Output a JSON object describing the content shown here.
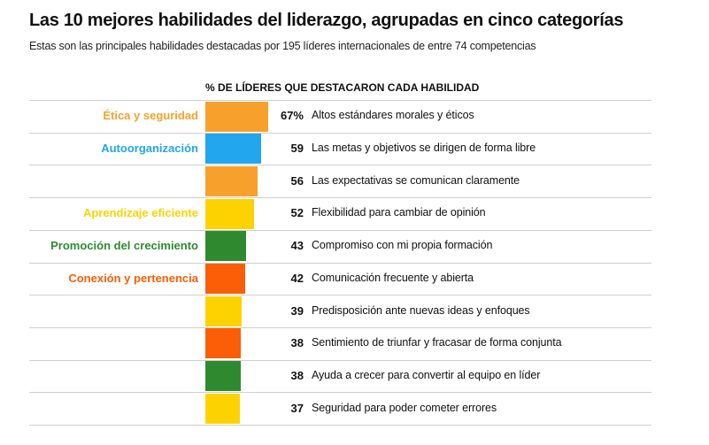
{
  "title": "Las 10 mejores habilidades del liderazgo, agrupadas en cinco categorías",
  "subtitle": "Estas son las principales habilidades destacadas por 195 líderes internacionales de entre 74 competencias",
  "column_header": "% DE LÍDERES QUE DESTACARON CADA HABILIDAD",
  "colors": {
    "etica": "#f7a12c",
    "autoorganizacion": "#22a6ee",
    "aprendizaje": "#fcd300",
    "promocion": "#2f8a2f",
    "conexion": "#fb5e06"
  },
  "chart_data": {
    "type": "bar",
    "orientation": "horizontal",
    "title": "Las 10 mejores habilidades del liderazgo, agrupadas en cinco categorías",
    "subtitle": "Estas son las principales habilidades destacadas por 195 líderes internacionales de entre 74 competencias",
    "value_header": "% DE LÍDERES QUE DESTACARON CADA HABILIDAD",
    "xlim": [
      0,
      100
    ],
    "grid": false,
    "categories": [
      "Altos estándares morales y éticos",
      "Las metas y objetivos se dirigen de forma libre",
      "Las expectativas se comunican claramente",
      "Flexibilidad para cambiar de opinión",
      "Compromiso con mi propia formación",
      "Comunicación frecuente y abierta",
      "Predisposición ante nuevas ideas y enfoques",
      "Sentimiento de triunfar y fracasar de forma conjunta",
      "Ayuda a crecer para convertir al equipo en líder",
      "Seguridad para poder cometer errores"
    ],
    "values": [
      67,
      59,
      56,
      52,
      43,
      42,
      39,
      38,
      38,
      37
    ],
    "value_labels": [
      "67%",
      "59",
      "56",
      "52",
      "43",
      "42",
      "39",
      "38",
      "38",
      "37"
    ],
    "bar_colors": [
      "#f7a12c",
      "#22a6ee",
      "#f7a12c",
      "#fcd300",
      "#2f8a2f",
      "#fb5e06",
      "#fcd300",
      "#fb5e06",
      "#2f8a2f",
      "#fcd300"
    ],
    "group_labels": [
      "Ética y seguridad",
      "Autoorganización",
      "",
      "Aprendizaje eficiente",
      "Promoción del crecimiento",
      "Conexión y pertenencia",
      "",
      "",
      "",
      ""
    ],
    "legend": [
      {
        "name": "Ética y seguridad",
        "color": "#f7a12c"
      },
      {
        "name": "Autoorganización",
        "color": "#22a6ee"
      },
      {
        "name": "Aprendizaje eficiente",
        "color": "#fcd300"
      },
      {
        "name": "Promoción del crecimiento",
        "color": "#2f8a2f"
      },
      {
        "name": "Conexión y pertenencia",
        "color": "#fb5e06"
      }
    ]
  }
}
